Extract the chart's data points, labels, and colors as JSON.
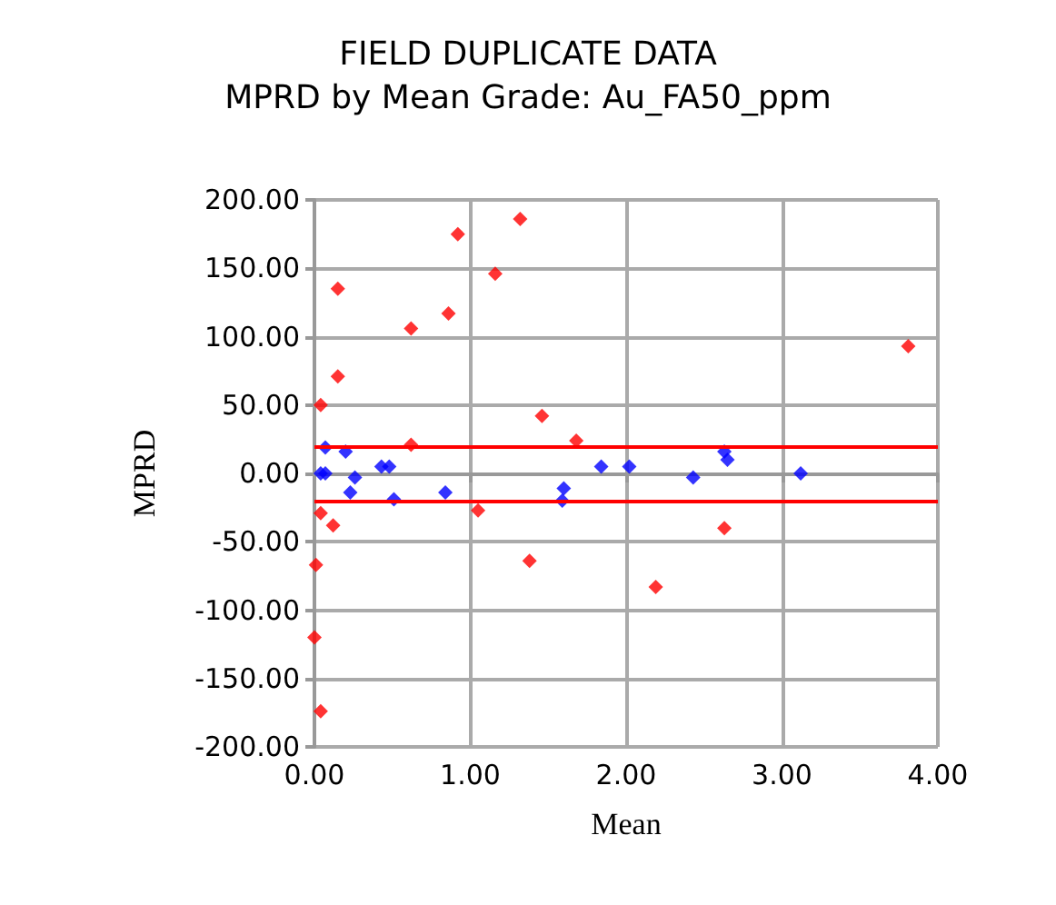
{
  "chart_data": {
    "type": "scatter",
    "title": "FIELD DUPLICATE DATA",
    "subtitle": "MPRD by Mean Grade: Au_FA50_ppm",
    "xlabel": "Mean",
    "ylabel": "MPRD",
    "series": [
      {
        "color": "#ff0000",
        "x": [
          0.15,
          0.92,
          1.32,
          1.16,
          0.86,
          0.62,
          0.15,
          0.04,
          1.46,
          0.62,
          1.68,
          1.05,
          0.04,
          0.12,
          0.01,
          1.38,
          0.0,
          0.04,
          3.81,
          2.63,
          2.19
        ],
        "values": [
          135,
          175,
          186,
          146,
          117,
          106,
          71,
          50,
          42,
          21,
          24,
          -27,
          -29,
          -38,
          -67,
          -64,
          -120,
          -174,
          93,
          -40,
          -83
        ]
      },
      {
        "color": "#0000ff",
        "x": [
          0.07,
          0.2,
          0.04,
          0.07,
          0.26,
          0.23,
          0.43,
          0.48,
          0.51,
          0.84,
          1.6,
          1.59,
          1.84,
          2.02,
          2.43,
          2.63,
          2.65,
          3.12
        ],
        "values": [
          19,
          16,
          0,
          0,
          -3,
          -14,
          5,
          5,
          -19,
          -14,
          -11,
          -20,
          5,
          5,
          -3,
          16,
          10,
          0
        ]
      }
    ],
    "xlim": [
      0,
      4
    ],
    "xticks": [
      {
        "value": 0,
        "label": "0.00"
      },
      {
        "value": 1,
        "label": "1.00"
      },
      {
        "value": 2,
        "label": "2.00"
      },
      {
        "value": 3,
        "label": "3.00"
      },
      {
        "value": 4,
        "label": "4.00"
      }
    ],
    "ylim": [
      -200,
      200
    ],
    "yticks": [
      {
        "value": -200,
        "label": "-200.00"
      },
      {
        "value": -150,
        "label": "-150.00"
      },
      {
        "value": -100,
        "label": "-100.00"
      },
      {
        "value": -50,
        "label": "-50.00"
      },
      {
        "value": 0,
        "label": "0.00"
      },
      {
        "value": 50,
        "label": "50.00"
      },
      {
        "value": 100,
        "label": "100.00"
      },
      {
        "value": 150,
        "label": "150.00"
      },
      {
        "value": 200,
        "label": "200.00"
      }
    ],
    "ref_lines": [
      {
        "axis": "y",
        "value": 20,
        "color": "#ff0000"
      },
      {
        "axis": "y",
        "value": -20,
        "color": "#ff0000"
      }
    ],
    "grid": true,
    "marker": "diamond"
  }
}
